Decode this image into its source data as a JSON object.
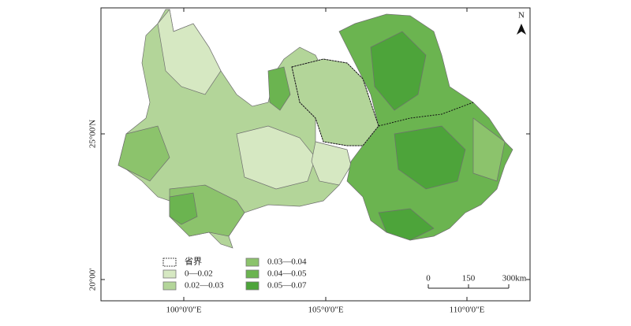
{
  "map": {
    "north_label": "N",
    "x_labels": [
      "100°0'0\"E",
      "105°0'0\"E",
      "110°0'0\"E"
    ],
    "y_labels": [
      "25°00'N",
      "20°00'"
    ],
    "legend": [
      {
        "label": "省界",
        "color": "#ffffff"
      },
      {
        "label": "0—0.02",
        "color": "#d6e8c2"
      },
      {
        "label": "0.02—0.03",
        "color": "#b3d599"
      },
      {
        "label": "0.03—0.04",
        "color": "#8cc36c"
      },
      {
        "label": "0.04—0.05",
        "color": "#6bb450"
      },
      {
        "label": "0.05—0.07",
        "color": "#4da43a"
      }
    ],
    "scale_bar": [
      "0",
      "150",
      "300km"
    ]
  }
}
